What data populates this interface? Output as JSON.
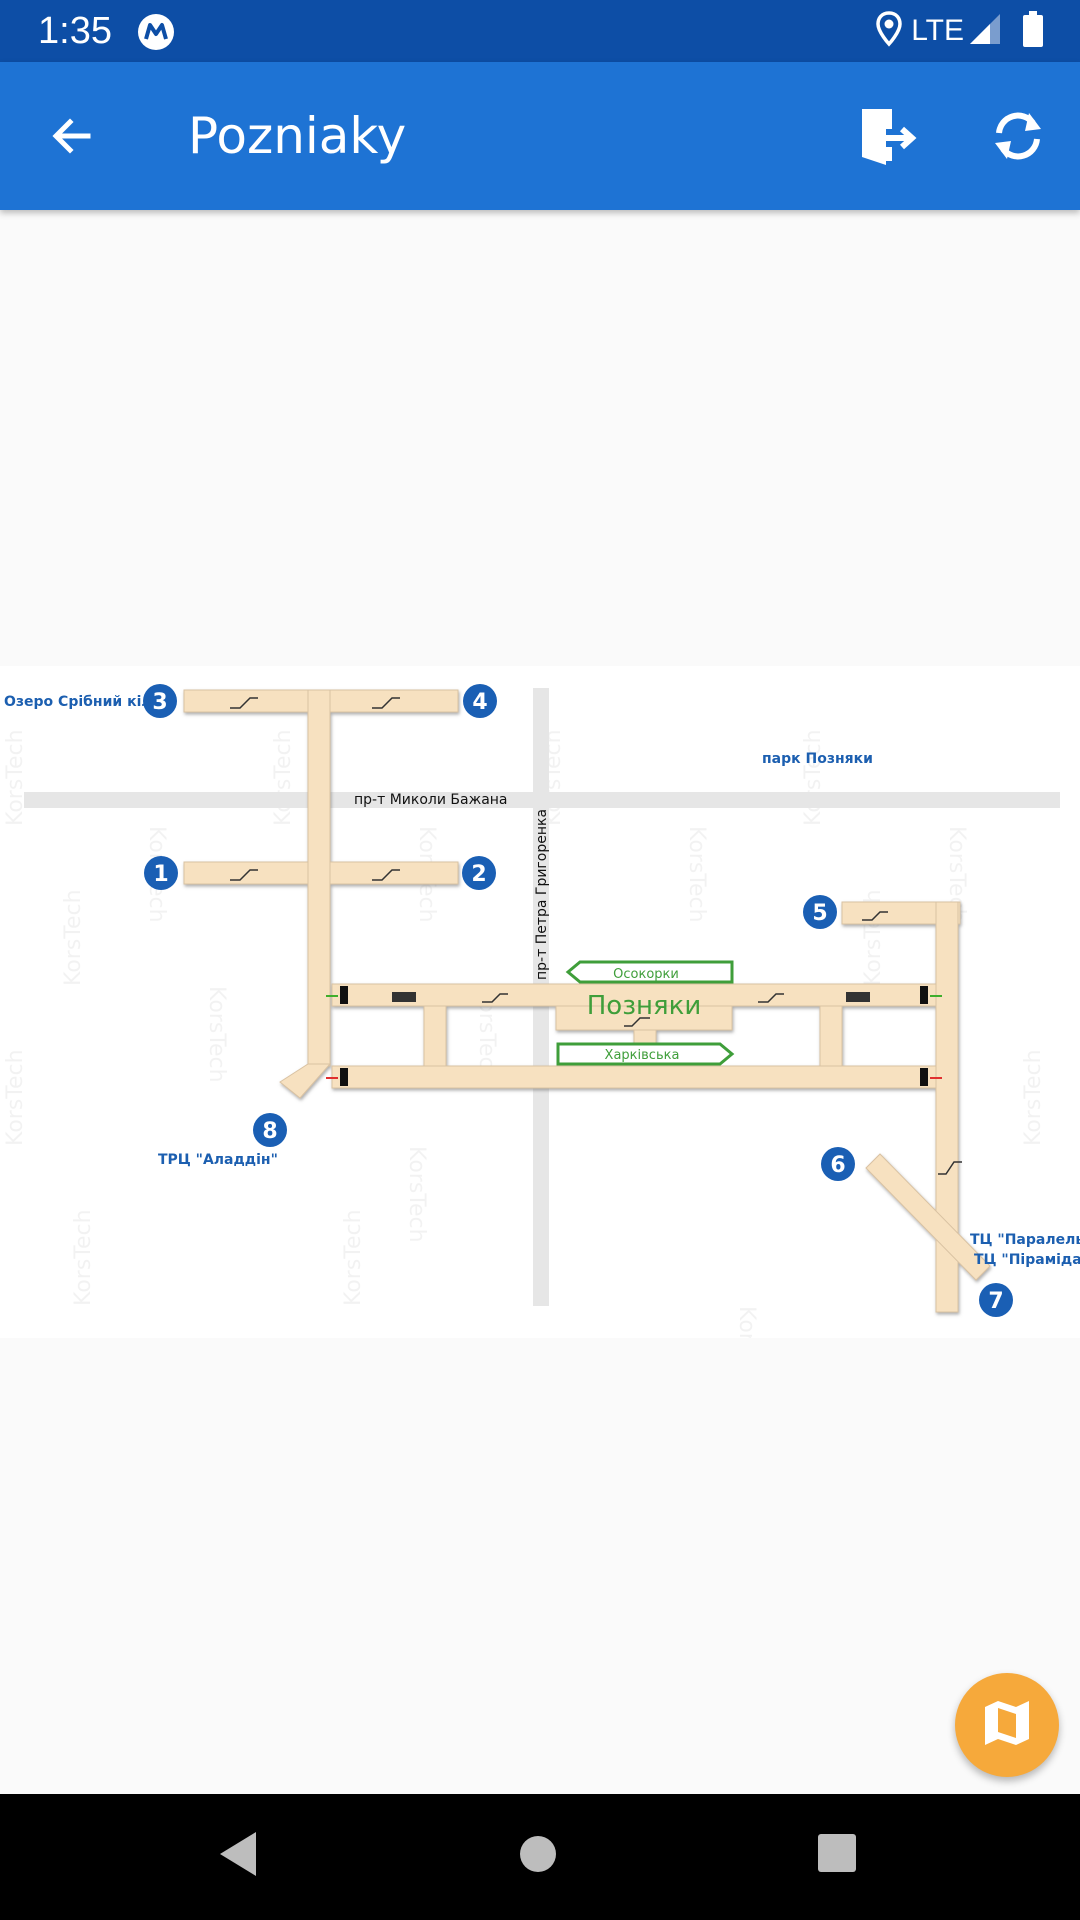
{
  "status_bar": {
    "time": "1:35",
    "network": "LTE",
    "icons": [
      "metro-icon",
      "location-icon",
      "signal-icon",
      "battery-icon"
    ]
  },
  "app_bar": {
    "title": "Pozniaky",
    "icons": [
      "back-arrow-icon",
      "exit-door-icon",
      "refresh-icon"
    ]
  },
  "map": {
    "labels": {
      "lake": "Озеро Срібний кіл",
      "park": "парк Позняки",
      "bazhana": "пр-т Миколи Бажана",
      "hryhorenka": "пр-т Петра Григоренка",
      "station": "Позняки",
      "to_osokorky": "Осокорки",
      "to_kharkivska": "Харківська",
      "aladdin": "ТРЦ \"Аладдін\"",
      "paralel": "ТЦ \"Паралель\",",
      "piramida": "ТЦ \"Піраміда\""
    },
    "exits": [
      "1",
      "2",
      "3",
      "4",
      "5",
      "6",
      "7",
      "8"
    ],
    "watermark": "KorsTech",
    "colors": {
      "tunnel": "#f7e1c0",
      "exit_marker": "#1a5fb4",
      "road": "#e6e6e6",
      "station_text": "#3f9e3a",
      "label_blue": "#1c5fb0"
    }
  },
  "fab": {
    "icon": "map-icon"
  },
  "nav_bar": {
    "icons": [
      "back-triangle-icon",
      "home-circle-icon",
      "recents-square-icon"
    ]
  }
}
